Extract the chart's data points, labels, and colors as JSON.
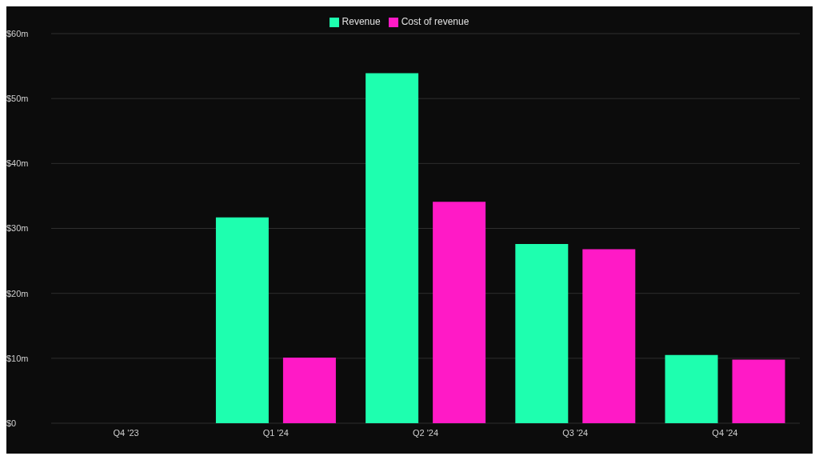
{
  "chart_data": {
    "type": "bar",
    "categories": [
      "Q4 '23",
      "Q1 '24",
      "Q2 '24",
      "Q3 '24",
      "Q4 '24"
    ],
    "series": [
      {
        "name": "Revenue",
        "color": "#1effaf",
        "values": [
          null,
          31.7,
          53.9,
          27.6,
          10.5
        ]
      },
      {
        "name": "Cost of revenue",
        "color": "#ff1ac6",
        "values": [
          null,
          10.1,
          34.1,
          26.8,
          9.8
        ]
      }
    ],
    "ylim": [
      0,
      60
    ],
    "yticks": [
      {
        "value": 0,
        "label": "$0"
      },
      {
        "value": 10,
        "label": "$10m"
      },
      {
        "value": 20,
        "label": "$20m"
      },
      {
        "value": 30,
        "label": "$30m"
      },
      {
        "value": 40,
        "label": "$40m"
      },
      {
        "value": 50,
        "label": "$50m"
      },
      {
        "value": 60,
        "label": "$60m"
      }
    ],
    "grid": "y",
    "legend": "top"
  }
}
